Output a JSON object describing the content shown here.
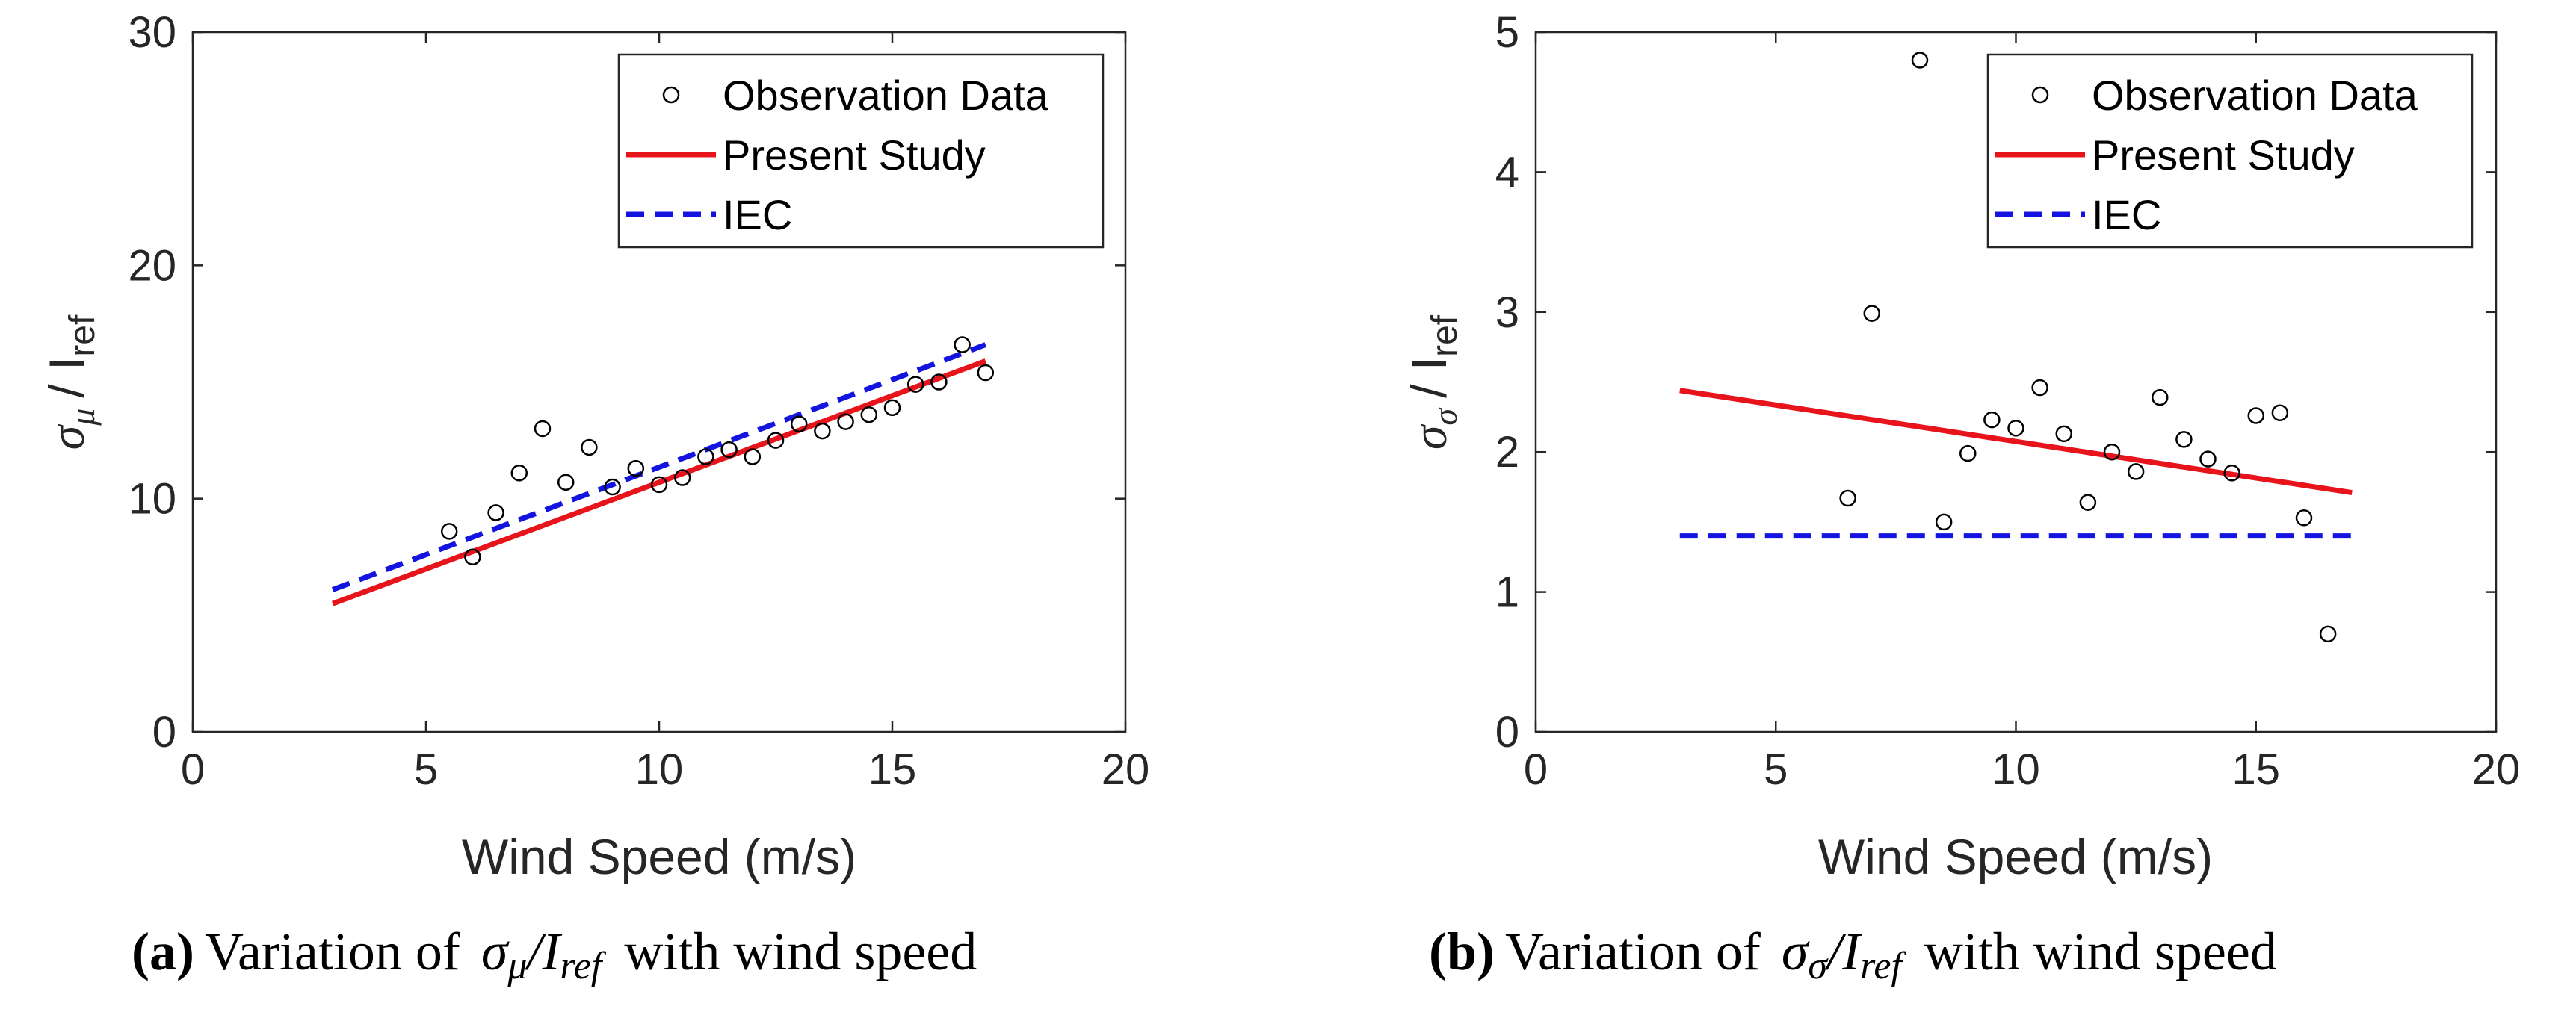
{
  "colors": {
    "present": "#e8141c",
    "iec": "#1414e0",
    "marker": "#000000",
    "axis": "#262626"
  },
  "chart_data": [
    {
      "type": "scatter",
      "panel": "a",
      "xlabel": "Wind Speed (m/s)",
      "ylabel": {
        "sym": "σ",
        "sub": "μ",
        "rest": "/ I",
        "rsub": "ref"
      },
      "xlim": [
        0,
        20
      ],
      "ylim": [
        0,
        30
      ],
      "xticks": [
        0,
        5,
        10,
        15,
        20
      ],
      "yticks": [
        0,
        10,
        20,
        30
      ],
      "legend_position": "top-right",
      "legend": [
        "Observation Data",
        "Present Study",
        "IEC"
      ],
      "series": [
        {
          "name": "Observation Data",
          "kind": "markers",
          "x": [
            5.5,
            6,
            6.5,
            7,
            7.5,
            8,
            8.5,
            9,
            9.5,
            10,
            10.5,
            11,
            11.5,
            12,
            12.5,
            13,
            13.5,
            14,
            14.5,
            15,
            15.5,
            16,
            16.5,
            17
          ],
          "y": [
            8.6,
            7.5,
            9.4,
            11.1,
            13.0,
            10.7,
            12.2,
            10.5,
            11.3,
            10.6,
            10.9,
            11.8,
            12.1,
            11.8,
            12.5,
            13.2,
            12.9,
            13.3,
            13.6,
            13.9,
            14.9,
            15.0,
            16.6,
            15.4
          ]
        },
        {
          "name": "Present Study",
          "kind": "solid",
          "x": [
            3,
            17
          ],
          "y": [
            5.5,
            15.9
          ]
        },
        {
          "name": "IEC",
          "kind": "dashed",
          "x": [
            3,
            17
          ],
          "y": [
            6.1,
            16.6
          ]
        }
      ],
      "caption": {
        "label": "(a)",
        "text": "Variation of",
        "sym": "σ",
        "sub": "μ",
        "rest": "/I",
        "rsub": "ref",
        "tail": "with wind speed"
      }
    },
    {
      "type": "scatter",
      "panel": "b",
      "xlabel": "Wind Speed (m/s)",
      "ylabel": {
        "sym": "σ",
        "sub": "σ",
        "rest": "/ I",
        "rsub": "ref"
      },
      "xlim": [
        0,
        20
      ],
      "ylim": [
        0,
        5
      ],
      "xticks": [
        0,
        5,
        10,
        15,
        20
      ],
      "yticks": [
        0,
        1,
        2,
        3,
        4,
        5
      ],
      "legend_position": "top-right",
      "legend": [
        "Observation Data",
        "Present Study",
        "IEC"
      ],
      "series": [
        {
          "name": "Observation Data",
          "kind": "markers",
          "x": [
            6.5,
            7,
            8,
            8.5,
            9,
            9.5,
            10,
            10.5,
            11,
            11.5,
            12,
            12.5,
            13,
            13.5,
            14,
            14.5,
            15,
            15.5,
            16,
            16.5
          ],
          "y": [
            1.67,
            2.99,
            4.8,
            1.5,
            1.99,
            2.23,
            2.17,
            2.46,
            2.13,
            1.64,
            2.0,
            1.86,
            2.39,
            2.09,
            1.95,
            1.85,
            2.26,
            2.28,
            1.53,
            0.7
          ]
        },
        {
          "name": "Present Study",
          "kind": "solid",
          "x": [
            3,
            17
          ],
          "y": [
            2.44,
            1.71
          ]
        },
        {
          "name": "IEC",
          "kind": "dashed",
          "x": [
            3,
            17
          ],
          "y": [
            1.4,
            1.4
          ]
        }
      ],
      "caption": {
        "label": "(b)",
        "text": "Variation of",
        "sym": "σ",
        "sub": "σ",
        "rest": "/I",
        "rsub": "ref",
        "tail": "with wind speed"
      }
    }
  ]
}
